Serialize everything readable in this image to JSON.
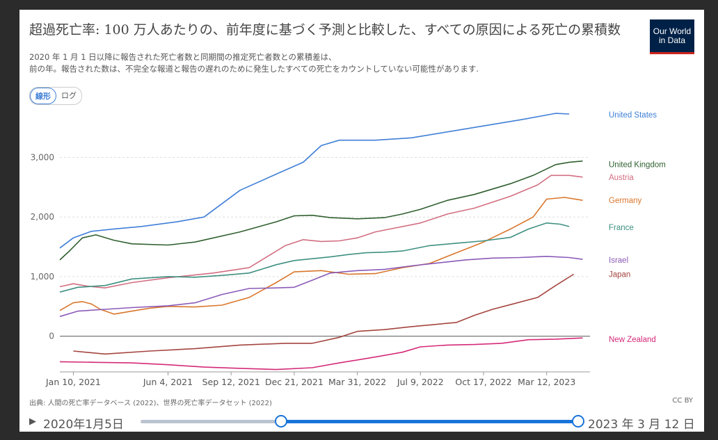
{
  "title": "超過死亡率: 100 万人あたりの、前年度に基づく予測と比較した、すべての原因による死亡の累積数",
  "logo": {
    "line1": "Our World",
    "line2": "in Data"
  },
  "subtitle": {
    "line1": "2020 年 1 月 1 日以降に報告された死亡者数と同期間の推定死亡者数との累積差は、",
    "line2": "前の年。報告された数は、不完全な報道と報告の遅れのために発生したすべての死亡をカウントしていない可能性があります."
  },
  "scale_toggle": {
    "linear": "線形",
    "log": "ログ"
  },
  "source": "出典: 人間の死亡率データベース (2022)、世界の死亡率データセット (2022)",
  "license": "CC BY",
  "timeline": {
    "start": "2020年1月5日",
    "end": "2023 年 3 月 12 日"
  },
  "chart_data": {
    "type": "line",
    "title": "超過死亡率: 100 万人あたりの、前年度に基づく予測と比較した、すべての原因による死亡の累積数",
    "ylim": [
      -600,
      3800
    ],
    "yticks": [
      0,
      1000,
      2000,
      3000
    ],
    "ytick_labels": [
      "0",
      "1,000",
      "2,000",
      "3,000"
    ],
    "x_range": [
      0,
      117
    ],
    "xticks": [
      3,
      24,
      38,
      52,
      66,
      80,
      94,
      108
    ],
    "xtick_labels": [
      "Jan 10, 2021",
      "Jun 4, 2021",
      "Sep 12, 2021",
      "Dec 21, 2021",
      "Mar 31, 2022",
      "Jul 9, 2022",
      "Oct 17, 2022",
      "Mar 12, 2023"
    ],
    "x_unit": "weeks since 2020-12-20",
    "series": [
      {
        "name": "United States",
        "color": "#3f7fd7",
        "points": [
          [
            0,
            1480
          ],
          [
            3,
            1650
          ],
          [
            7,
            1760
          ],
          [
            12,
            1800
          ],
          [
            18,
            1840
          ],
          [
            26,
            1920
          ],
          [
            32,
            2000
          ],
          [
            40,
            2450
          ],
          [
            48,
            2720
          ],
          [
            54,
            2920
          ],
          [
            58,
            3200
          ],
          [
            62,
            3290
          ],
          [
            70,
            3290
          ],
          [
            78,
            3330
          ],
          [
            90,
            3480
          ],
          [
            102,
            3630
          ],
          [
            110,
            3740
          ],
          [
            113,
            3730
          ]
        ],
        "label_value": 3720
      },
      {
        "name": "United Kingdom",
        "color": "#2f5f2f",
        "points": [
          [
            0,
            1280
          ],
          [
            2,
            1420
          ],
          [
            5,
            1650
          ],
          [
            8,
            1700
          ],
          [
            12,
            1610
          ],
          [
            16,
            1550
          ],
          [
            24,
            1530
          ],
          [
            30,
            1580
          ],
          [
            40,
            1750
          ],
          [
            48,
            1920
          ],
          [
            52,
            2020
          ],
          [
            56,
            2030
          ],
          [
            60,
            1990
          ],
          [
            66,
            1970
          ],
          [
            72,
            1990
          ],
          [
            76,
            2050
          ],
          [
            80,
            2130
          ],
          [
            86,
            2280
          ],
          [
            92,
            2380
          ],
          [
            100,
            2560
          ],
          [
            105,
            2700
          ],
          [
            110,
            2880
          ],
          [
            113,
            2920
          ],
          [
            116,
            2940
          ]
        ],
        "label_value": 2930
      },
      {
        "name": "Austria",
        "color": "#d26e80",
        "points": [
          [
            0,
            830
          ],
          [
            3,
            880
          ],
          [
            6,
            840
          ],
          [
            10,
            810
          ],
          [
            16,
            900
          ],
          [
            24,
            980
          ],
          [
            34,
            1060
          ],
          [
            42,
            1150
          ],
          [
            50,
            1520
          ],
          [
            54,
            1620
          ],
          [
            58,
            1590
          ],
          [
            62,
            1600
          ],
          [
            66,
            1650
          ],
          [
            70,
            1750
          ],
          [
            80,
            1900
          ],
          [
            86,
            2050
          ],
          [
            92,
            2150
          ],
          [
            100,
            2350
          ],
          [
            106,
            2540
          ],
          [
            109,
            2700
          ],
          [
            113,
            2700
          ],
          [
            116,
            2670
          ]
        ],
        "label_value": 2670
      },
      {
        "name": "Germany",
        "color": "#d9762c",
        "points": [
          [
            0,
            430
          ],
          [
            3,
            560
          ],
          [
            5,
            580
          ],
          [
            7,
            540
          ],
          [
            9,
            450
          ],
          [
            12,
            370
          ],
          [
            16,
            420
          ],
          [
            20,
            470
          ],
          [
            24,
            500
          ],
          [
            30,
            490
          ],
          [
            36,
            520
          ],
          [
            42,
            650
          ],
          [
            48,
            900
          ],
          [
            52,
            1080
          ],
          [
            58,
            1100
          ],
          [
            64,
            1040
          ],
          [
            70,
            1050
          ],
          [
            76,
            1150
          ],
          [
            82,
            1220
          ],
          [
            88,
            1400
          ],
          [
            94,
            1580
          ],
          [
            100,
            1800
          ],
          [
            105,
            2000
          ],
          [
            108,
            2300
          ],
          [
            112,
            2330
          ],
          [
            116,
            2280
          ]
        ],
        "label_value": 2280
      },
      {
        "name": "France",
        "color": "#3d9080",
        "points": [
          [
            0,
            740
          ],
          [
            4,
            820
          ],
          [
            10,
            850
          ],
          [
            16,
            960
          ],
          [
            24,
            1000
          ],
          [
            30,
            990
          ],
          [
            36,
            1020
          ],
          [
            42,
            1060
          ],
          [
            48,
            1200
          ],
          [
            52,
            1270
          ],
          [
            56,
            1300
          ],
          [
            60,
            1330
          ],
          [
            64,
            1370
          ],
          [
            68,
            1400
          ],
          [
            72,
            1410
          ],
          [
            76,
            1430
          ],
          [
            82,
            1520
          ],
          [
            88,
            1560
          ],
          [
            94,
            1600
          ],
          [
            100,
            1660
          ],
          [
            104,
            1800
          ],
          [
            108,
            1900
          ],
          [
            111,
            1880
          ],
          [
            113,
            1840
          ]
        ],
        "label_value": 1830
      },
      {
        "name": "Israel",
        "color": "#8a5ab8",
        "points": [
          [
            0,
            330
          ],
          [
            4,
            420
          ],
          [
            10,
            450
          ],
          [
            16,
            480
          ],
          [
            24,
            510
          ],
          [
            30,
            560
          ],
          [
            36,
            700
          ],
          [
            42,
            800
          ],
          [
            48,
            810
          ],
          [
            52,
            820
          ],
          [
            56,
            940
          ],
          [
            60,
            1060
          ],
          [
            66,
            1100
          ],
          [
            72,
            1120
          ],
          [
            78,
            1180
          ],
          [
            84,
            1230
          ],
          [
            90,
            1280
          ],
          [
            96,
            1310
          ],
          [
            102,
            1320
          ],
          [
            108,
            1340
          ],
          [
            113,
            1320
          ],
          [
            116,
            1290
          ]
        ],
        "label_value": 1280
      },
      {
        "name": "Japan",
        "color": "#a4443e",
        "points": [
          [
            3,
            -250
          ],
          [
            10,
            -300
          ],
          [
            20,
            -250
          ],
          [
            30,
            -210
          ],
          [
            40,
            -150
          ],
          [
            50,
            -120
          ],
          [
            56,
            -120
          ],
          [
            62,
            -20
          ],
          [
            66,
            80
          ],
          [
            72,
            110
          ],
          [
            78,
            160
          ],
          [
            88,
            230
          ],
          [
            92,
            350
          ],
          [
            96,
            450
          ],
          [
            100,
            530
          ],
          [
            106,
            650
          ],
          [
            110,
            850
          ],
          [
            114,
            1040
          ]
        ],
        "label_value": 1040
      },
      {
        "name": "New Zealand",
        "color": "#d42a78",
        "points": [
          [
            0,
            -430
          ],
          [
            8,
            -440
          ],
          [
            16,
            -450
          ],
          [
            24,
            -480
          ],
          [
            32,
            -520
          ],
          [
            40,
            -540
          ],
          [
            48,
            -560
          ],
          [
            56,
            -530
          ],
          [
            62,
            -450
          ],
          [
            70,
            -350
          ],
          [
            76,
            -270
          ],
          [
            80,
            -180
          ],
          [
            86,
            -150
          ],
          [
            92,
            -140
          ],
          [
            98,
            -120
          ],
          [
            104,
            -60
          ],
          [
            110,
            -50
          ],
          [
            116,
            -30
          ]
        ],
        "label_value": -30
      }
    ]
  }
}
